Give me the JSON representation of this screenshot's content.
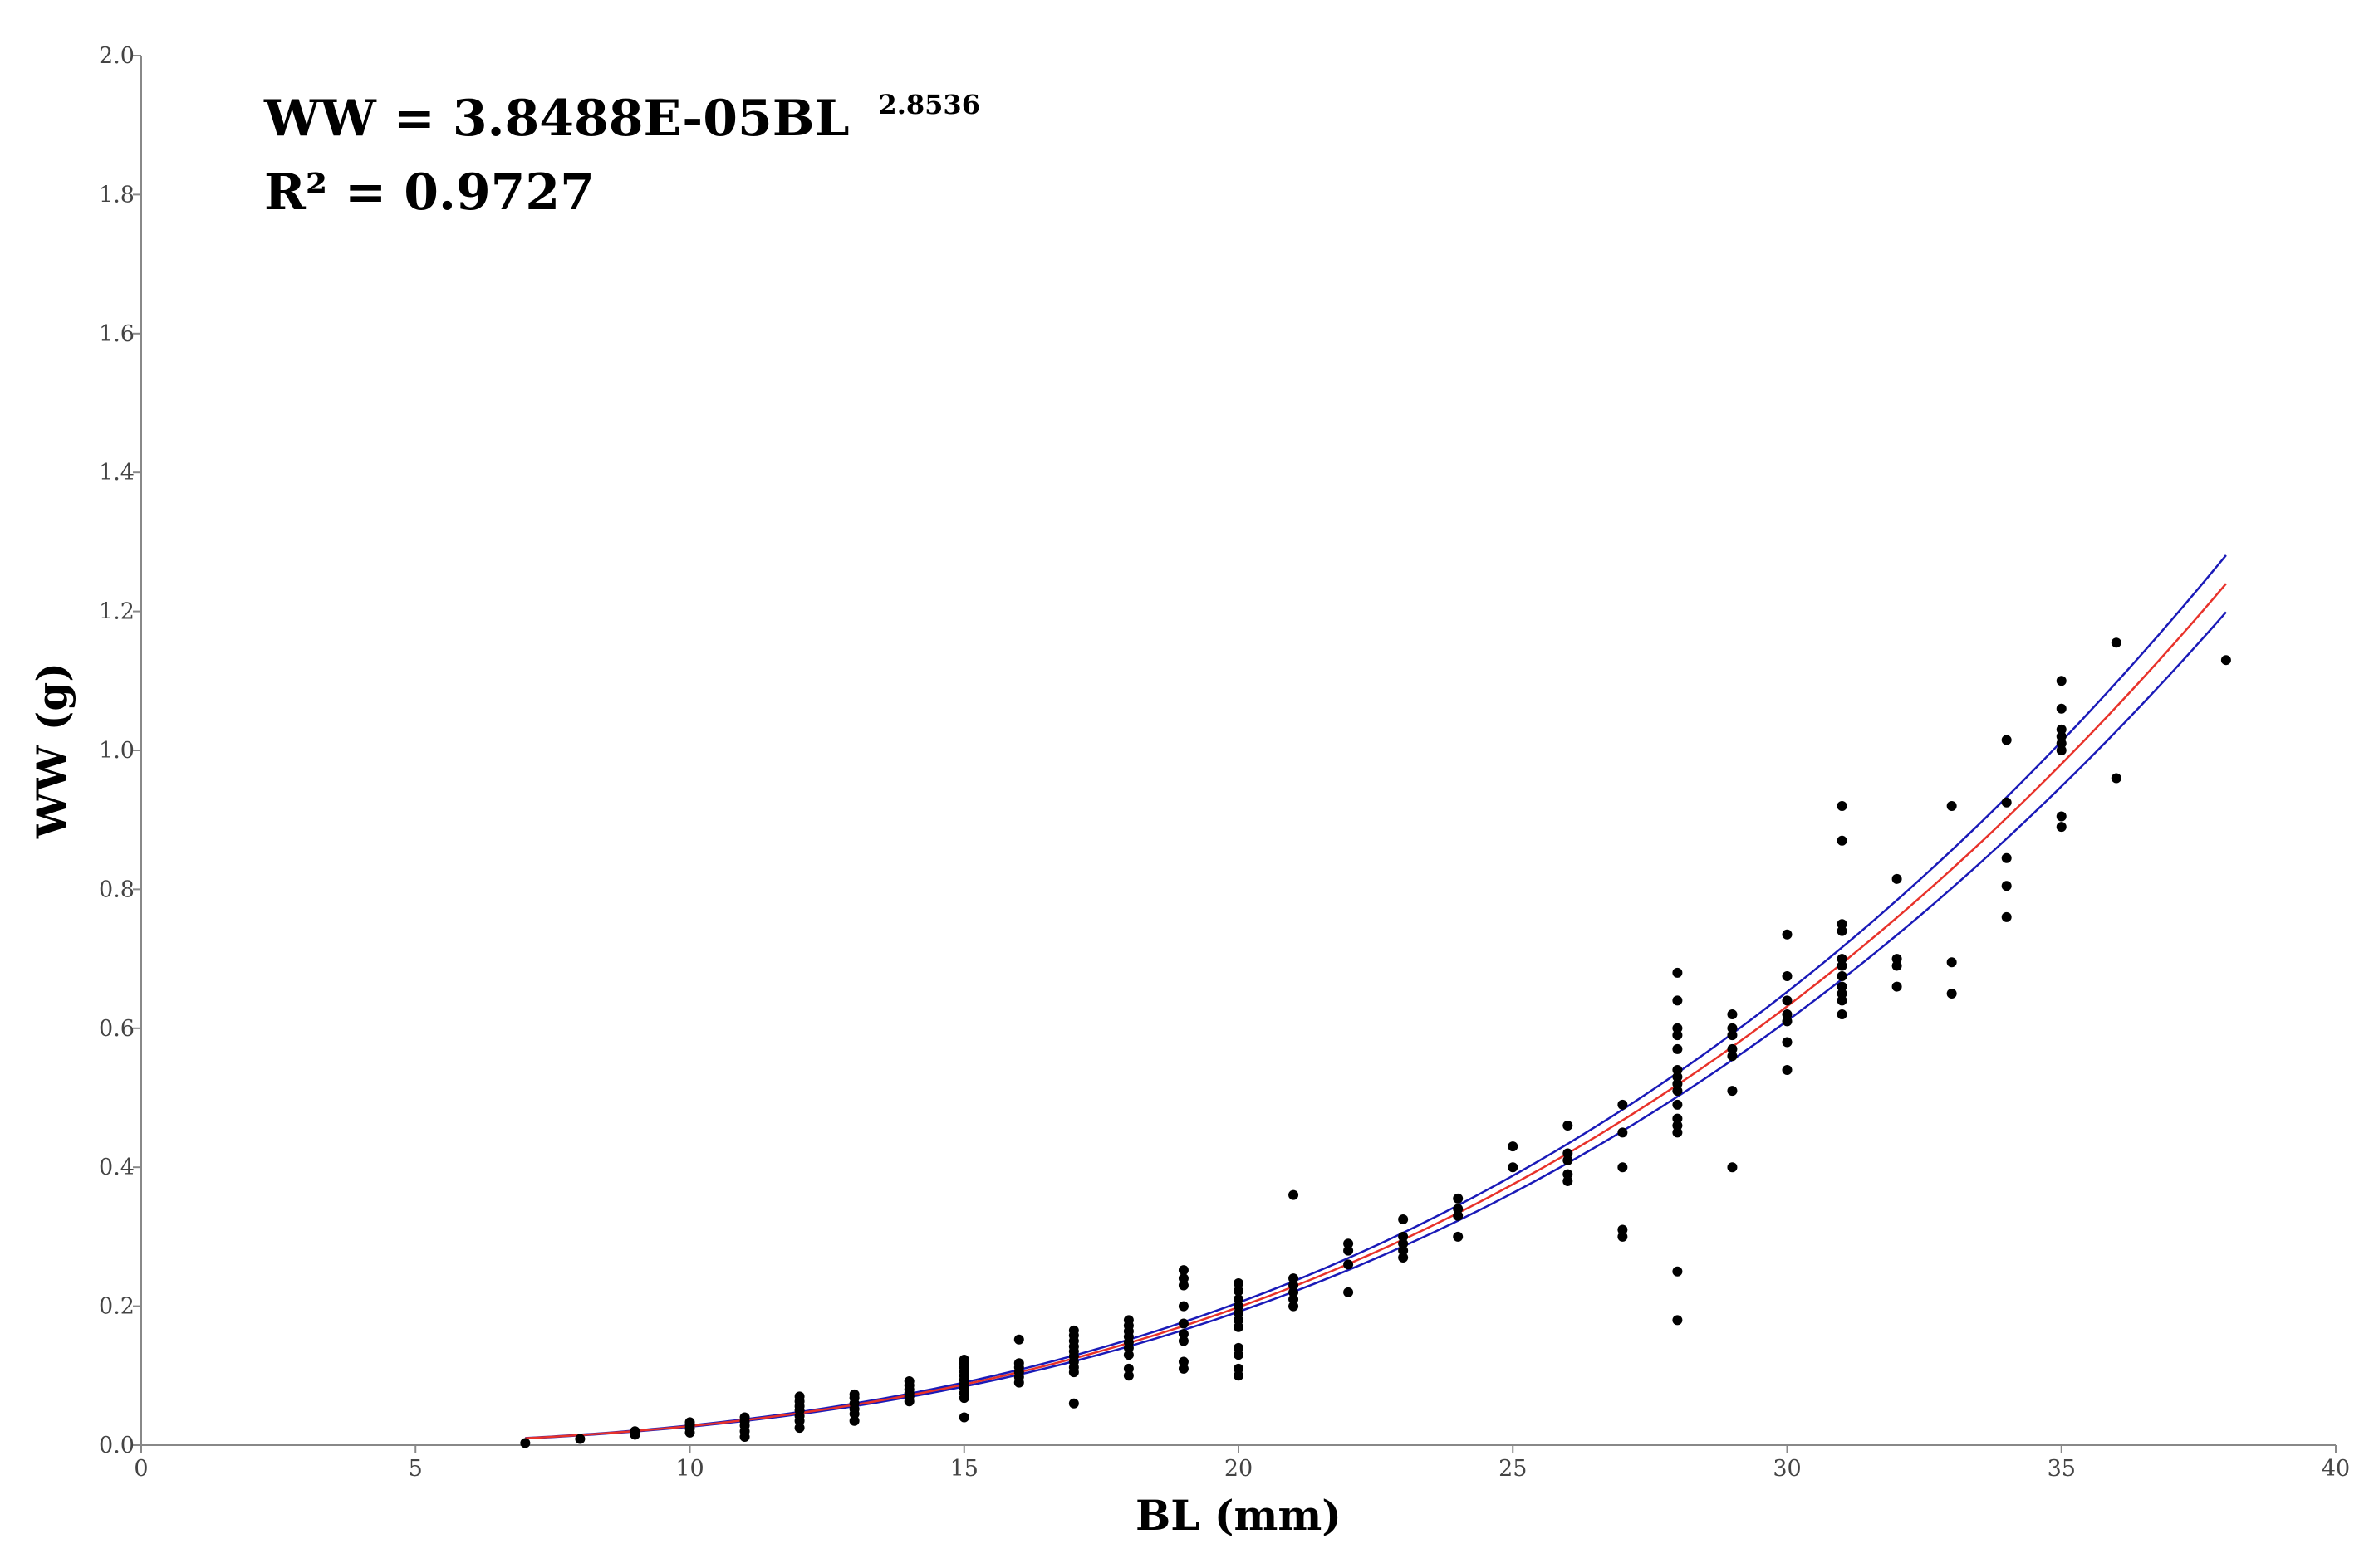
{
  "chart_data": {
    "type": "scatter",
    "title": "",
    "xlabel": "BL (mm)",
    "ylabel": "WW (g)",
    "xlim": [
      0,
      40
    ],
    "ylim": [
      0,
      2.0
    ],
    "x_ticks": [
      0,
      5,
      10,
      15,
      20,
      25,
      30,
      35,
      40
    ],
    "y_ticks": [
      0.0,
      0.2,
      0.4,
      0.6,
      0.8,
      1.0,
      1.2,
      1.4,
      1.6,
      1.8,
      2.0
    ],
    "x_tick_labels": [
      "0",
      "5",
      "10",
      "15",
      "20",
      "25",
      "30",
      "35",
      "40"
    ],
    "y_tick_labels": [
      "0.0",
      "0.2",
      "0.4",
      "0.6",
      "0.8",
      "1.0",
      "1.2",
      "1.4",
      "1.6",
      "1.8",
      "2.0"
    ],
    "grid": false,
    "annotation": {
      "equation_main": "WW = 3.8488E-05BL",
      "equation_exponent": "2.8536",
      "r_squared": "R² = 0.9727"
    },
    "colors": {
      "points": "#000000",
      "fit_line": "#e8322a",
      "confidence_band": "#1a1ab8",
      "axis": "#888888"
    },
    "fit": {
      "model": "power",
      "a": 3.8488e-05,
      "b": 2.8536,
      "x_range": [
        7,
        38
      ],
      "band_fraction": 0.033
    },
    "series": [
      {
        "points": [
          [
            7,
            0.003
          ],
          [
            8,
            0.009
          ],
          [
            9,
            0.015
          ],
          [
            9,
            0.02
          ],
          [
            10,
            0.018
          ],
          [
            10,
            0.024
          ],
          [
            10,
            0.029
          ],
          [
            10,
            0.033
          ],
          [
            11,
            0.012
          ],
          [
            11,
            0.02
          ],
          [
            11,
            0.028
          ],
          [
            11,
            0.034
          ],
          [
            11,
            0.04
          ],
          [
            12,
            0.025
          ],
          [
            12,
            0.035
          ],
          [
            12,
            0.042
          ],
          [
            12,
            0.05
          ],
          [
            12,
            0.056
          ],
          [
            12,
            0.063
          ],
          [
            12,
            0.07
          ],
          [
            13,
            0.035
          ],
          [
            13,
            0.045
          ],
          [
            13,
            0.052
          ],
          [
            13,
            0.06
          ],
          [
            13,
            0.068
          ],
          [
            13,
            0.073
          ],
          [
            14,
            0.063
          ],
          [
            14,
            0.07
          ],
          [
            14,
            0.075
          ],
          [
            14,
            0.08
          ],
          [
            14,
            0.086
          ],
          [
            14,
            0.092
          ],
          [
            15,
            0.04
          ],
          [
            15,
            0.068
          ],
          [
            15,
            0.075
          ],
          [
            15,
            0.082
          ],
          [
            15,
            0.088
          ],
          [
            15,
            0.094
          ],
          [
            15,
            0.1
          ],
          [
            15,
            0.106
          ],
          [
            15,
            0.112
          ],
          [
            15,
            0.118
          ],
          [
            15,
            0.123
          ],
          [
            16,
            0.09
          ],
          [
            16,
            0.098
          ],
          [
            16,
            0.105
          ],
          [
            16,
            0.112
          ],
          [
            16,
            0.118
          ],
          [
            16,
            0.152
          ],
          [
            17,
            0.06
          ],
          [
            17,
            0.105
          ],
          [
            17,
            0.112
          ],
          [
            17,
            0.12
          ],
          [
            17,
            0.128
          ],
          [
            17,
            0.135
          ],
          [
            17,
            0.142
          ],
          [
            17,
            0.15
          ],
          [
            17,
            0.158
          ],
          [
            17,
            0.165
          ],
          [
            18,
            0.1
          ],
          [
            18,
            0.11
          ],
          [
            18,
            0.13
          ],
          [
            18,
            0.14
          ],
          [
            18,
            0.148
          ],
          [
            18,
            0.156
          ],
          [
            18,
            0.164
          ],
          [
            18,
            0.172
          ],
          [
            18,
            0.18
          ],
          [
            19,
            0.11
          ],
          [
            19,
            0.12
          ],
          [
            19,
            0.15
          ],
          [
            19,
            0.16
          ],
          [
            19,
            0.175
          ],
          [
            19,
            0.2
          ],
          [
            19,
            0.23
          ],
          [
            19,
            0.24
          ],
          [
            19,
            0.252
          ],
          [
            20,
            0.1
          ],
          [
            20,
            0.11
          ],
          [
            20,
            0.13
          ],
          [
            20,
            0.14
          ],
          [
            20,
            0.17
          ],
          [
            20,
            0.18
          ],
          [
            20,
            0.19
          ],
          [
            20,
            0.2
          ],
          [
            20,
            0.21
          ],
          [
            20,
            0.222
          ],
          [
            20,
            0.233
          ],
          [
            21,
            0.2
          ],
          [
            21,
            0.21
          ],
          [
            21,
            0.22
          ],
          [
            21,
            0.23
          ],
          [
            21,
            0.24
          ],
          [
            21,
            0.36
          ],
          [
            22,
            0.22
          ],
          [
            22,
            0.26
          ],
          [
            22,
            0.28
          ],
          [
            22,
            0.29
          ],
          [
            23,
            0.27
          ],
          [
            23,
            0.28
          ],
          [
            23,
            0.29
          ],
          [
            23,
            0.3
          ],
          [
            23,
            0.325
          ],
          [
            24,
            0.3
          ],
          [
            24,
            0.33
          ],
          [
            24,
            0.34
          ],
          [
            24,
            0.355
          ],
          [
            25,
            0.4
          ],
          [
            25,
            0.43
          ],
          [
            26,
            0.38
          ],
          [
            26,
            0.39
          ],
          [
            26,
            0.41
          ],
          [
            26,
            0.42
          ],
          [
            26,
            0.46
          ],
          [
            27,
            0.3
          ],
          [
            27,
            0.31
          ],
          [
            27,
            0.4
          ],
          [
            27,
            0.45
          ],
          [
            27,
            0.49
          ],
          [
            28,
            0.18
          ],
          [
            28,
            0.25
          ],
          [
            28,
            0.45
          ],
          [
            28,
            0.46
          ],
          [
            28,
            0.47
          ],
          [
            28,
            0.49
          ],
          [
            28,
            0.51
          ],
          [
            28,
            0.52
          ],
          [
            28,
            0.53
          ],
          [
            28,
            0.54
          ],
          [
            28,
            0.57
          ],
          [
            28,
            0.59
          ],
          [
            28,
            0.6
          ],
          [
            28,
            0.64
          ],
          [
            28,
            0.68
          ],
          [
            29,
            0.4
          ],
          [
            29,
            0.51
          ],
          [
            29,
            0.56
          ],
          [
            29,
            0.57
          ],
          [
            29,
            0.59
          ],
          [
            29,
            0.6
          ],
          [
            29,
            0.62
          ],
          [
            30,
            0.54
          ],
          [
            30,
            0.58
          ],
          [
            30,
            0.61
          ],
          [
            30,
            0.62
          ],
          [
            30,
            0.64
          ],
          [
            30,
            0.675
          ],
          [
            30,
            0.735
          ],
          [
            31,
            0.62
          ],
          [
            31,
            0.64
          ],
          [
            31,
            0.65
          ],
          [
            31,
            0.66
          ],
          [
            31,
            0.675
          ],
          [
            31,
            0.69
          ],
          [
            31,
            0.7
          ],
          [
            31,
            0.74
          ],
          [
            31,
            0.75
          ],
          [
            31,
            0.87
          ],
          [
            31,
            0.92
          ],
          [
            32,
            0.66
          ],
          [
            32,
            0.69
          ],
          [
            32,
            0.7
          ],
          [
            32,
            0.815
          ],
          [
            33,
            0.65
          ],
          [
            33,
            0.695
          ],
          [
            33,
            0.92
          ],
          [
            34,
            0.76
          ],
          [
            34,
            0.805
          ],
          [
            34,
            0.845
          ],
          [
            34,
            0.925
          ],
          [
            34,
            1.015
          ],
          [
            35,
            0.89
          ],
          [
            35,
            0.905
          ],
          [
            35,
            1.0
          ],
          [
            35,
            1.01
          ],
          [
            35,
            1.02
          ],
          [
            35,
            1.03
          ],
          [
            35,
            1.06
          ],
          [
            35,
            1.1
          ],
          [
            36,
            0.96
          ],
          [
            36,
            1.155
          ],
          [
            38,
            1.13
          ]
        ]
      }
    ]
  }
}
